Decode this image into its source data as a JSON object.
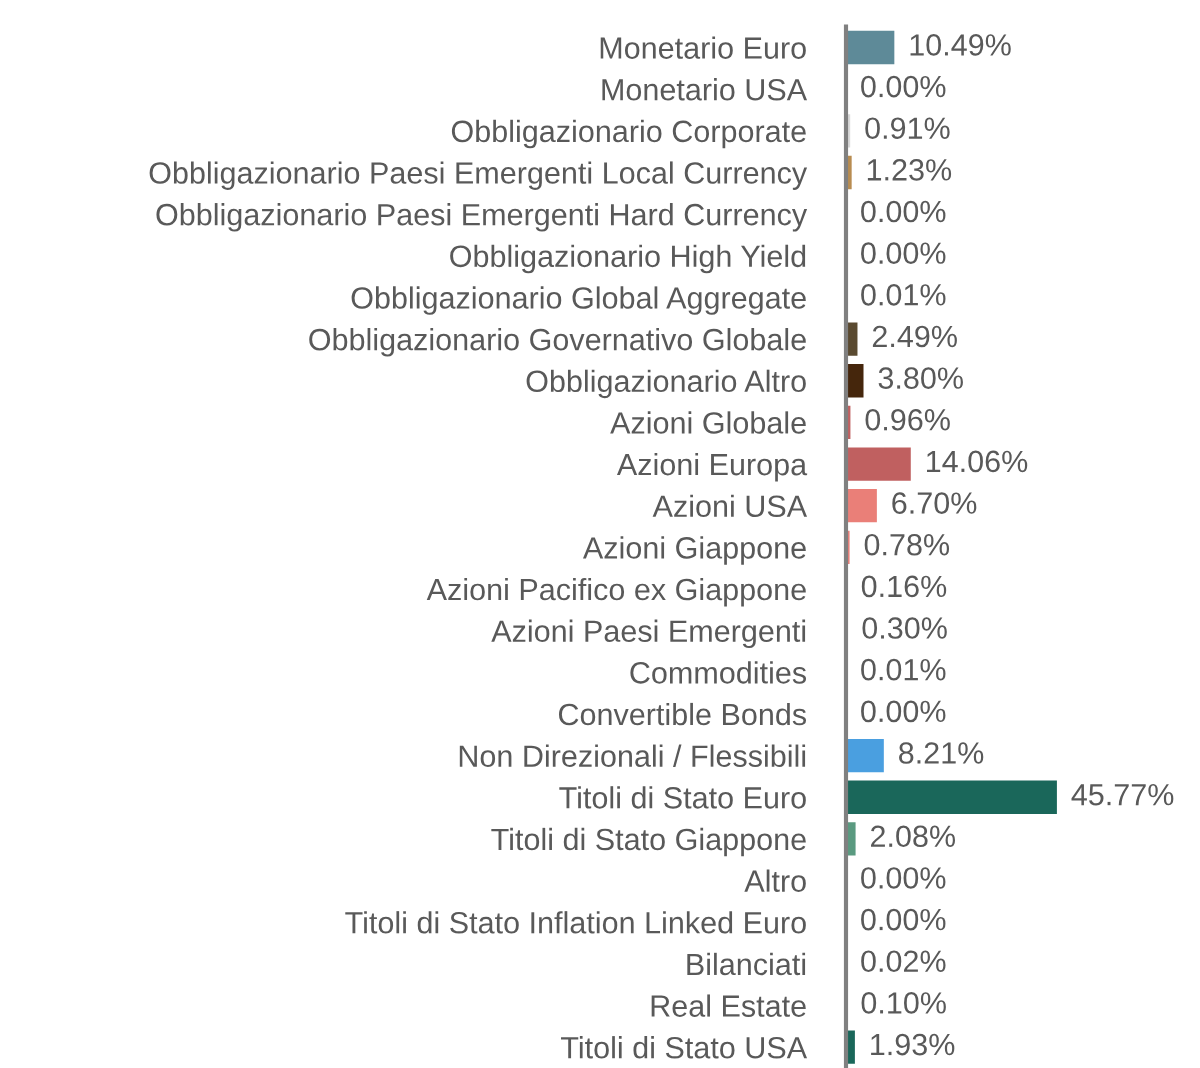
{
  "chart_data": {
    "type": "bar",
    "orientation": "horizontal",
    "categories": [
      "Monetario Euro",
      "Monetario USA",
      "Obbligazionario Corporate",
      "Obbligazionario Paesi Emergenti Local Currency",
      "Obbligazionario Paesi Emergenti Hard Currency",
      "Obbligazionario High Yield",
      "Obbligazionario Global Aggregate",
      "Obbligazionario Governativo Globale",
      "Obbligazionario Altro",
      "Azioni Globale",
      "Azioni Europa",
      "Azioni USA",
      "Azioni Giappone",
      "Azioni Pacifico ex Giappone",
      "Azioni Paesi Emergenti",
      "Commodities",
      "Convertible Bonds",
      "Non Direzionali / Flessibili",
      "Titoli di Stato Euro",
      "Titoli di Stato Giappone",
      "Altro",
      "Titoli di Stato Inflation Linked Euro",
      "Bilanciati",
      "Real Estate",
      "Titoli di Stato USA"
    ],
    "values": [
      10.49,
      0.0,
      0.91,
      1.23,
      0.0,
      0.0,
      0.01,
      2.49,
      3.8,
      0.96,
      14.06,
      6.7,
      0.78,
      0.16,
      0.3,
      0.01,
      0.0,
      8.21,
      45.77,
      2.08,
      0.0,
      0.0,
      0.02,
      0.1,
      1.93
    ],
    "value_labels": [
      "10.49%",
      "0.00%",
      "0.91%",
      "1.23%",
      "0.00%",
      "0.00%",
      "0.01%",
      "2.49%",
      "3.80%",
      "0.96%",
      "14.06%",
      "6.70%",
      "0.78%",
      "0.16%",
      "0.30%",
      "0.01%",
      "0.00%",
      "8.21%",
      "45.77%",
      "2.08%",
      "0.00%",
      "0.00%",
      "0.02%",
      "0.10%",
      "1.93%"
    ],
    "colors": [
      "#5e8a98",
      "#5e8a98",
      "#d9d9d9",
      "#b88c50",
      "#b88c50",
      "#b88c50",
      "#5a4a30",
      "#5a4a30",
      "#45260c",
      "#c06060",
      "#c06060",
      "#ea7f78",
      "#ea7f78",
      "#ea7f78",
      "#ea7f78",
      "#4a9fe0",
      "#4a9fe0",
      "#4a9fe0",
      "#1a675a",
      "#5a9a80",
      "#5a9a80",
      "#5a9a80",
      "#5a9a80",
      "#1a675a",
      "#1a675a"
    ],
    "grid": false,
    "legend": false
  }
}
